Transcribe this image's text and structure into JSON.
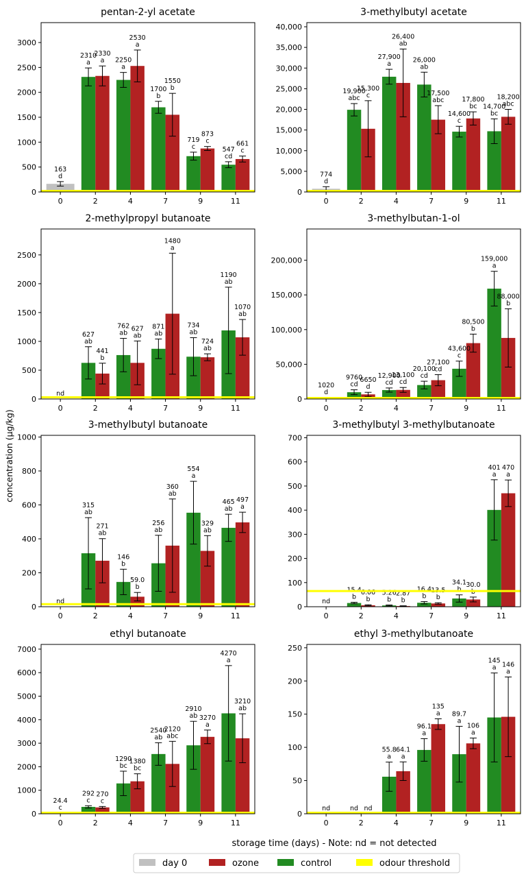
{
  "colors": {
    "day0": "#c0c0c0",
    "ozone": "#b22222",
    "control": "#228b22",
    "threshold": "#ffff00"
  },
  "figure": {
    "ylabel": "concentration (µg/kg)",
    "xlabel": "storage time (days)  - Note:  nd = not detected"
  },
  "legend": {
    "items": [
      {
        "label": "day 0",
        "color": "#c0c0c0"
      },
      {
        "label": "ozone",
        "color": "#b22222"
      },
      {
        "label": "control",
        "color": "#228b22"
      },
      {
        "label": "odour threshold",
        "color": "#ffff00"
      }
    ]
  },
  "chart_data": [
    {
      "type": "bar",
      "title": "pentan-2-yl acetate",
      "categories": [
        "0",
        "2",
        "4",
        "7",
        "9",
        "11"
      ],
      "ylim": [
        0,
        3400
      ],
      "yticks": [
        0,
        500,
        1000,
        1500,
        2000,
        2500,
        3000
      ],
      "comma": false,
      "threshold": 20,
      "day0": {
        "value": 163,
        "err": 45,
        "label": "163",
        "letter": "d"
      },
      "control": {
        "values": [
          2310,
          2250,
          1700,
          719,
          547
        ],
        "errors": [
          180,
          150,
          120,
          80,
          60
        ],
        "labels": [
          "2310",
          "2250",
          "1700",
          "719",
          "547"
        ],
        "letters": [
          "a",
          "a",
          "b",
          "c",
          "cd"
        ]
      },
      "ozone": {
        "values": [
          2330,
          2530,
          1550,
          873,
          661
        ],
        "errors": [
          200,
          320,
          430,
          40,
          60
        ],
        "labels": [
          "2330",
          "2530",
          "1550",
          "873",
          "661"
        ],
        "letters": [
          "a",
          "a",
          "b",
          "c",
          "c"
        ]
      }
    },
    {
      "type": "bar",
      "title": "3-methylbutyl acetate",
      "categories": [
        "0",
        "2",
        "4",
        "7",
        "9",
        "11"
      ],
      "ylim": [
        0,
        41000
      ],
      "yticks": [
        0,
        5000,
        10000,
        15000,
        20000,
        25000,
        30000,
        35000,
        40000
      ],
      "comma": true,
      "threshold": 0,
      "day0": {
        "value": 774,
        "err": 500,
        "label": "774",
        "letter": "d"
      },
      "control": {
        "values": [
          19900,
          27900,
          26000,
          14600,
          14700
        ],
        "errors": [
          1500,
          1800,
          3000,
          1300,
          3000
        ],
        "labels": [
          "19,900",
          "27,900",
          "26,000",
          "14,600",
          "14,700"
        ],
        "letters": [
          "abc",
          "a",
          "ab",
          "c",
          "bc"
        ]
      },
      "ozone": {
        "values": [
          15300,
          26400,
          17500,
          17800,
          18200
        ],
        "errors": [
          6800,
          8200,
          3400,
          1600,
          1800
        ],
        "labels": [
          "15,300",
          "26,400",
          "17,500",
          "17,800",
          "18,200"
        ],
        "letters": [
          "c",
          "ab",
          "abc",
          "bc",
          "abc"
        ]
      }
    },
    {
      "type": "bar",
      "title": "2-methylpropyl butanoate",
      "categories": [
        "0",
        "2",
        "4",
        "7",
        "9",
        "11"
      ],
      "ylim": [
        0,
        2950
      ],
      "yticks": [
        0,
        500,
        1000,
        1500,
        2000,
        2500
      ],
      "comma": false,
      "threshold": 30,
      "day0": {
        "value": 0,
        "err": 0,
        "label": "nd",
        "letter": ""
      },
      "control": {
        "values": [
          627,
          762,
          871,
          734,
          1190
        ],
        "errors": [
          280,
          290,
          170,
          330,
          750
        ],
        "labels": [
          "627",
          "762",
          "871",
          "734",
          "1190"
        ],
        "letters": [
          "ab",
          "ab",
          "ab",
          "ab",
          "ab"
        ]
      },
      "ozone": {
        "values": [
          441,
          627,
          1480,
          724,
          1070
        ],
        "errors": [
          180,
          380,
          1050,
          60,
          310
        ],
        "labels": [
          "441",
          "627",
          "1480",
          "724",
          "1070"
        ],
        "letters": [
          "b",
          "ab",
          "a",
          "ab",
          "ab"
        ]
      }
    },
    {
      "type": "bar",
      "title": "3-methylbutan-1-ol",
      "categories": [
        "0",
        "2",
        "4",
        "7",
        "9",
        "11"
      ],
      "ylim": [
        0,
        245000
      ],
      "yticks": [
        0,
        50000,
        100000,
        150000,
        200000
      ],
      "comma": true,
      "threshold": 0,
      "day0": {
        "value": 1020,
        "err": 800,
        "label": "1020",
        "letter": "d"
      },
      "control": {
        "values": [
          9760,
          12900,
          20100,
          43600,
          159000
        ],
        "errors": [
          3500,
          3000,
          5500,
          11000,
          25000
        ],
        "labels": [
          "9760",
          "12,900",
          "20,100",
          "43,600",
          "159,000"
        ],
        "letters": [
          "cd",
          "cd",
          "cd",
          "c",
          "a"
        ]
      },
      "ozone": {
        "values": [
          6650,
          13100,
          27100,
          80500,
          88000
        ],
        "errors": [
          3000,
          3500,
          8000,
          13000,
          42000
        ],
        "labels": [
          "6650",
          "13,100",
          "27,100",
          "80,500",
          "88,000"
        ],
        "letters": [
          "d",
          "cd",
          "cd",
          "b",
          "b"
        ]
      }
    },
    {
      "type": "bar",
      "title": "3-methylbutyl butanoate",
      "categories": [
        "0",
        "2",
        "4",
        "7",
        "9",
        "11"
      ],
      "ylim": [
        0,
        1010
      ],
      "yticks": [
        0,
        200,
        400,
        600,
        800,
        1000
      ],
      "comma": false,
      "threshold": 15,
      "day0": {
        "value": 0,
        "err": 0,
        "label": "nd",
        "letter": ""
      },
      "control": {
        "values": [
          315,
          146,
          256,
          554,
          465
        ],
        "errors": [
          210,
          75,
          165,
          185,
          80
        ],
        "labels": [
          "315",
          "146",
          "256",
          "554",
          "465"
        ],
        "letters": [
          "ab",
          "b",
          "ab",
          "a",
          "ab"
        ]
      },
      "ozone": {
        "values": [
          271,
          59,
          360,
          329,
          497
        ],
        "errors": [
          130,
          25,
          275,
          90,
          60
        ],
        "labels": [
          "271",
          "59.0",
          "360",
          "329",
          "497"
        ],
        "letters": [
          "ab",
          "b",
          "ab",
          "ab",
          "a"
        ]
      }
    },
    {
      "type": "bar",
      "title": "3-methylbutyl 3-methylbutanoate",
      "categories": [
        "0",
        "2",
        "4",
        "7",
        "9",
        "11"
      ],
      "ylim": [
        0,
        710
      ],
      "yticks": [
        0,
        100,
        200,
        300,
        400,
        500,
        600,
        700
      ],
      "comma": false,
      "threshold": 65,
      "day0": {
        "value": 0,
        "err": 0,
        "label": "nd",
        "letter": ""
      },
      "control": {
        "values": [
          15.4,
          5.26,
          16.4,
          34.1,
          401
        ],
        "errors": [
          3,
          2,
          5,
          15,
          125
        ],
        "labels": [
          "15.4",
          "5.26",
          "16.4",
          "34.1",
          "401"
        ],
        "letters": [
          "b",
          "b",
          "b",
          "b",
          "a"
        ]
      },
      "ozone": {
        "values": [
          6.06,
          2.87,
          13.5,
          30,
          470
        ],
        "errors": [
          2,
          1,
          3,
          10,
          55
        ],
        "labels": [
          "6.06",
          "2.87",
          "13.5",
          "30.0",
          "470"
        ],
        "letters": [
          "b",
          "b",
          "b",
          "b",
          "a"
        ]
      }
    },
    {
      "type": "bar",
      "title": "ethyl butanoate",
      "categories": [
        "0",
        "2",
        "4",
        "7",
        "9",
        "11"
      ],
      "ylim": [
        0,
        7200
      ],
      "yticks": [
        0,
        1000,
        2000,
        3000,
        4000,
        5000,
        6000,
        7000
      ],
      "comma": false,
      "threshold": 0,
      "day0": {
        "value": 24.4,
        "err": 10,
        "label": "24.4",
        "letter": "c"
      },
      "control": {
        "values": [
          292,
          1290,
          2540,
          2910,
          4270
        ],
        "errors": [
          50,
          520,
          480,
          1020,
          2030
        ],
        "labels": [
          "292",
          "1290",
          "2540",
          "2910",
          "4270"
        ],
        "letters": [
          "c",
          "bc",
          "ab",
          "ab",
          "a"
        ]
      },
      "ozone": {
        "values": [
          270,
          1380,
          2120,
          3270,
          3210
        ],
        "errors": [
          40,
          320,
          960,
          290,
          1040
        ],
        "labels": [
          "270",
          "1380",
          "2120",
          "3270",
          "3210"
        ],
        "letters": [
          "c",
          "bc",
          "abc",
          "a",
          "ab"
        ]
      }
    },
    {
      "type": "bar",
      "title": "ethyl 3-methylbutanoate",
      "categories": [
        "0",
        "2",
        "4",
        "7",
        "9",
        "11"
      ],
      "ylim": [
        0,
        255
      ],
      "yticks": [
        0,
        50,
        100,
        150,
        200,
        250
      ],
      "comma": false,
      "threshold": 0,
      "day0": {
        "value": 0,
        "err": 0,
        "label": "nd",
        "letter": ""
      },
      "control": {
        "values": [
          0,
          55.8,
          96.1,
          89.7,
          145
        ],
        "errors": [
          0,
          22,
          17,
          42,
          67
        ],
        "labels": [
          "nd",
          "55.8",
          "96.1",
          "89.7",
          "145"
        ],
        "letters": [
          "",
          "a",
          "a",
          "a",
          "a"
        ]
      },
      "ozone": {
        "values": [
          0,
          64.1,
          135,
          106,
          146
        ],
        "errors": [
          0,
          14,
          8,
          8,
          60
        ],
        "labels": [
          "nd",
          "64.1",
          "135",
          "106",
          "146"
        ],
        "letters": [
          "",
          "a",
          "a",
          "a",
          "a"
        ]
      }
    }
  ]
}
